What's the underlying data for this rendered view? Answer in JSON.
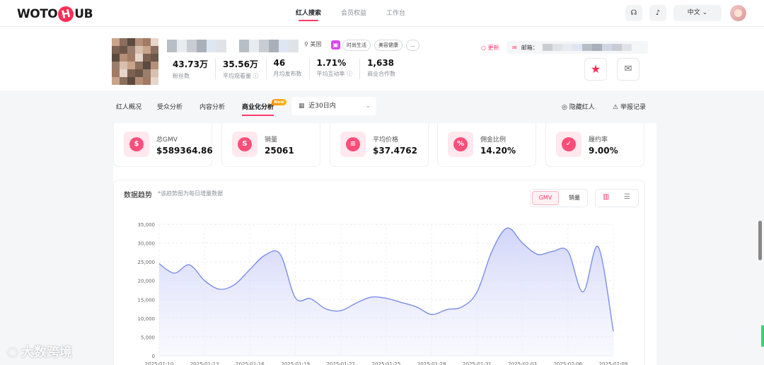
{
  "app": {
    "logo_left": "WOTO",
    "logo_mid": "H",
    "logo_right": "UB"
  },
  "topnav": {
    "tabs": [
      {
        "label": "红人搜索",
        "active": true
      },
      {
        "label": "会员权益",
        "active": false
      },
      {
        "label": "工作台",
        "active": false
      }
    ],
    "language": "中文",
    "icons": [
      "headset-icon",
      "bell-icon",
      "chevron-down-icon"
    ]
  },
  "profile": {
    "country": "美国",
    "tags": [
      "时尚生活",
      "美容健康",
      "..."
    ],
    "stats": [
      {
        "value": "43.73万",
        "label": "粉丝数"
      },
      {
        "value": "35.56万",
        "label": "平均观看量"
      },
      {
        "value": "46",
        "label": "月均发布数"
      },
      {
        "value": "1.71%",
        "label": "平均互动率"
      },
      {
        "value": "1,638",
        "label": "商业合作数"
      }
    ],
    "update_label": "更新",
    "email_label": "邮箱："
  },
  "subtabs": {
    "items": [
      {
        "label": "红人概况",
        "active": false
      },
      {
        "label": "受众分析",
        "active": false
      },
      {
        "label": "内容分析",
        "active": false
      },
      {
        "label": "商业化分析",
        "active": true
      }
    ],
    "new_badge": "New",
    "date_range": "近30日内",
    "hide_label": "隐藏红人",
    "report_label": "举报记录"
  },
  "kpis": [
    {
      "label": "总GMV",
      "value": "$589364.86",
      "icon": "dollar-icon",
      "glyph": "$"
    },
    {
      "label": "销量",
      "value": "25061",
      "icon": "sale-icon",
      "glyph": "S"
    },
    {
      "label": "平均价格",
      "value": "$37.4762",
      "icon": "coins-icon",
      "glyph": "≡"
    },
    {
      "label": "佣金比例",
      "value": "14.20%",
      "icon": "ticket-icon",
      "glyph": "%"
    },
    {
      "label": "履约率",
      "value": "9.00%",
      "icon": "document-icon",
      "glyph": "✓"
    }
  ],
  "chart_card": {
    "title": "数据趋势",
    "note": "*该趋势图为每日增量数据",
    "toggle_a": "GMV",
    "toggle_b": "销量"
  },
  "watermark": "大数跨境",
  "chart_data": {
    "type": "area",
    "title": "数据趋势",
    "x": [
      "2025-01-10",
      "2025-01-11",
      "2025-01-12",
      "2025-01-13",
      "2025-01-14",
      "2025-01-15",
      "2025-01-16",
      "2025-01-17",
      "2025-01-18",
      "2025-01-19",
      "2025-01-20",
      "2025-01-21",
      "2025-01-22",
      "2025-01-23",
      "2025-01-24",
      "2025-01-25",
      "2025-01-26",
      "2025-01-27",
      "2025-01-28",
      "2025-01-29",
      "2025-01-30",
      "2025-01-31",
      "2025-02-01",
      "2025-02-02",
      "2025-02-03",
      "2025-02-04",
      "2025-02-05",
      "2025-02-06",
      "2025-02-07",
      "2025-02-08",
      "2025-02-09"
    ],
    "series": [
      {
        "values": [
          24500,
          22000,
          24200,
          20000,
          17700,
          19000,
          23000,
          26800,
          27000,
          15400,
          15200,
          12500,
          12000,
          14000,
          15600,
          15300,
          14200,
          13000,
          11000,
          12300,
          13000,
          17000,
          28000,
          34000,
          30000,
          27000,
          27800,
          27800,
          17000,
          29000,
          6500
        ]
      }
    ],
    "xticks": [
      "2025-01-10",
      "2025-01-13",
      "2025-01-16",
      "2025-01-19",
      "2025-01-22",
      "2025-01-25",
      "2025-01-28",
      "2025-01-31",
      "2025-02-03",
      "2025-02-06",
      "2025-02-09"
    ],
    "yticks": [
      "0",
      "5,000",
      "10,000",
      "15,000",
      "20,000",
      "25,000",
      "30,000",
      "35,000"
    ],
    "ylim": [
      0,
      35000
    ],
    "grid": true,
    "color": "#7b8ee8"
  }
}
